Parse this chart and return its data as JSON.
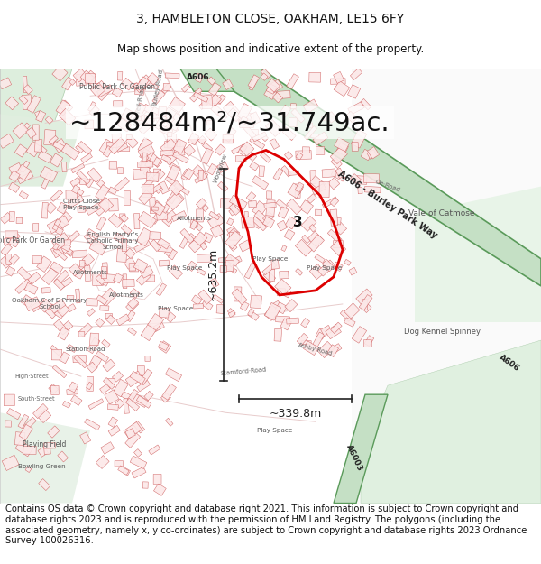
{
  "title": "3, HAMBLETON CLOSE, OAKHAM, LE15 6FY",
  "subtitle": "Map shows position and indicative extent of the property.",
  "area_text": "~128484m²/~31.749ac.",
  "width_text": "~339.8m",
  "height_text": "~635.2m",
  "label_3": "3",
  "footer": "Contains OS data © Crown copyright and database right 2021. This information is subject to Crown copyright and database rights 2023 and is reproduced with the permission of HM Land Registry. The polygons (including the associated geometry, namely x, y co-ordinates) are subject to Crown copyright and database rights 2023 Ordnance Survey 100026316.",
  "bg_color": "#ffffff",
  "title_fontsize": 10,
  "subtitle_fontsize": 8.5,
  "area_fontsize": 21,
  "footer_fontsize": 7.2,
  "map_bg": "#ffffff",
  "urban_fill": "#fce8e8",
  "urban_edge": "#cc5555",
  "green_road_fill": "#c8e6c8",
  "green_road_edge": "#4a9a4a",
  "green_area_fill": "#ddeedd",
  "road_label_color": "#222222",
  "place_label_color": "#555555",
  "red_polygon_color": "#dd0000",
  "arrow_color": "#222222",
  "measurement_fontsize": 9,
  "label3_fontsize": 11
}
